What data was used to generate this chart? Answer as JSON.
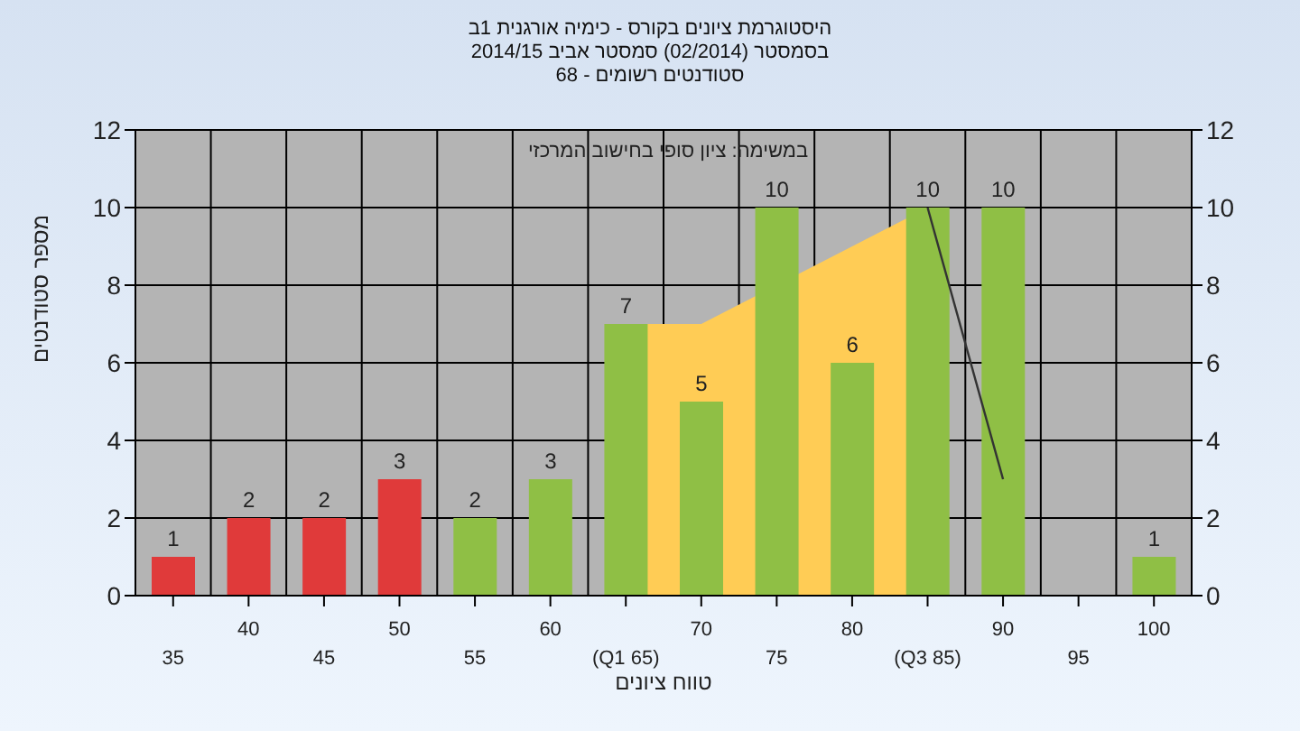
{
  "chart_data": {
    "type": "bar",
    "title": "היסטוגרמת ציונים בקורס - כימיה אורגנית 1ב",
    "subtitle": "בסמסטר  (02/2014)  סמסטר אביב 2014/15\nסטודנטים רשומים - 68",
    "xlabel": "טווח ציונים",
    "ylabel": "מספר סטודנטים",
    "annotations": [
      "במשימה: ציון סופי בחישוב המרכזי"
    ],
    "categories": [
      "35",
      "40",
      "45",
      "50",
      "55",
      "60",
      "(Q1 65)",
      "70",
      "75",
      "80",
      "(Q3 85)",
      "90",
      "95",
      "100"
    ],
    "series": [
      {
        "colors": [
          "#e03a3a",
          "#e03a3a",
          "#e03a3a",
          "#e03a3a",
          "#8fbf45",
          "#8fbf45",
          "#8fbf45",
          "#8fbf45",
          "#8fbf45",
          "#8fbf45",
          "#8fbf45",
          "#8fbf45",
          "#8fbf45",
          "#8fbf45"
        ],
        "values": [
          1,
          2,
          2,
          3,
          2,
          3,
          7,
          5,
          10,
          6,
          10,
          10,
          0,
          1
        ],
        "value_labels": [
          "1",
          "2",
          "2",
          "3",
          "2",
          "3",
          "7",
          "5",
          "10",
          "6",
          "10",
          "10",
          null,
          "1"
        ]
      },
      {
        "type": "area",
        "color": "#ffcc55",
        "values": [
          null,
          null,
          null,
          null,
          null,
          null,
          7,
          7,
          null,
          9,
          10,
          null,
          null,
          null
        ]
      },
      {
        "type": "line",
        "color": "#333333",
        "values": [
          null,
          null,
          null,
          null,
          null,
          null,
          null,
          null,
          null,
          null,
          10,
          3,
          null,
          null
        ]
      }
    ],
    "ylim": [
      0,
      12
    ],
    "yticks": [
      0,
      2,
      4,
      6,
      8,
      10,
      12
    ],
    "y2lim": [
      0,
      12
    ],
    "y2ticks": [
      0,
      2,
      4,
      6,
      8,
      10,
      12
    ],
    "grid": true
  }
}
